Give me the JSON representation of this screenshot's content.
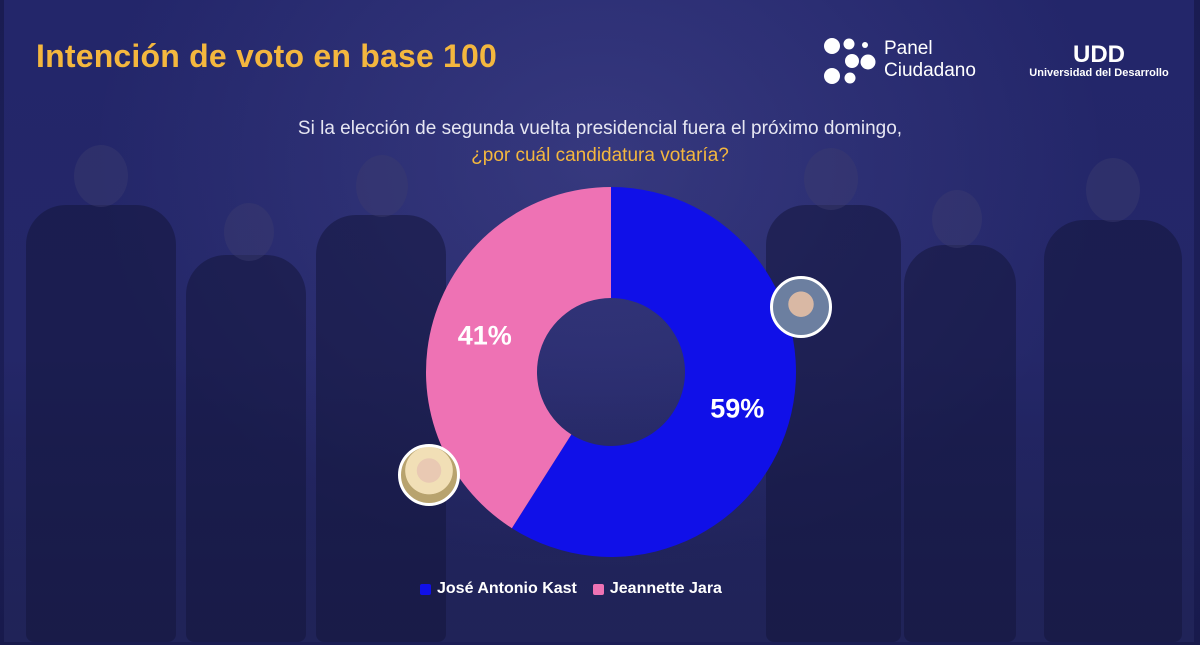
{
  "header": {
    "title": "Intención de voto en base 100",
    "question_line1": "Si la elección de segunda vuelta presidencial fuera el próximo domingo,",
    "question_line2": "¿por cuál candidatura votaría?"
  },
  "logos": {
    "panel_line1": "Panel",
    "panel_line2": "Ciudadano",
    "udd_mark": "UDD",
    "udd_caption": "Universidad del Desarrollo"
  },
  "colors": {
    "title": "#f4b73e",
    "kast": "#1010e8",
    "jara": "#ee72b4"
  },
  "chart_data": {
    "type": "pie",
    "variant": "donut",
    "title": "Intención de voto en base 100",
    "categories": [
      "José Antonio Kast",
      "Jeannette Jara"
    ],
    "values": [
      59,
      41
    ],
    "labels": [
      "59%",
      "41%"
    ],
    "colors": [
      "#1010e8",
      "#ee72b4"
    ],
    "legend_position": "bottom"
  }
}
